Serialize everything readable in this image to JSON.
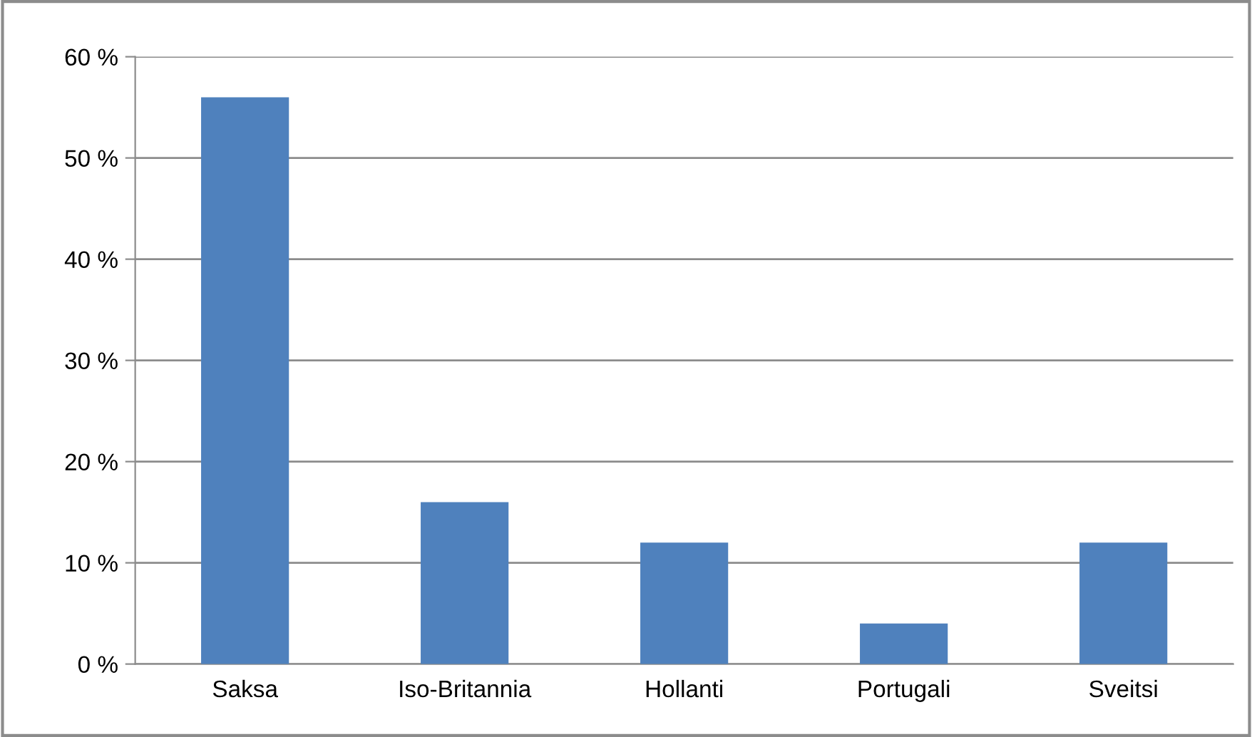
{
  "chart_data": {
    "type": "bar",
    "categories": [
      "Saksa",
      "Iso-Britannia",
      "Hollanti",
      "Portugali",
      "Sveitsi"
    ],
    "values": [
      56,
      16,
      12,
      4,
      12
    ],
    "color": "#4f81bd",
    "ylim": [
      0,
      60
    ],
    "yticks": [
      {
        "value": 0,
        "label": "0 %"
      },
      {
        "value": 10,
        "label": "10 %"
      },
      {
        "value": 20,
        "label": "20 %"
      },
      {
        "value": 30,
        "label": "30 %"
      },
      {
        "value": 40,
        "label": "40 %"
      },
      {
        "value": 50,
        "label": "50 %"
      },
      {
        "value": 60,
        "label": "60 %"
      }
    ],
    "grid": "y",
    "legend": false
  }
}
